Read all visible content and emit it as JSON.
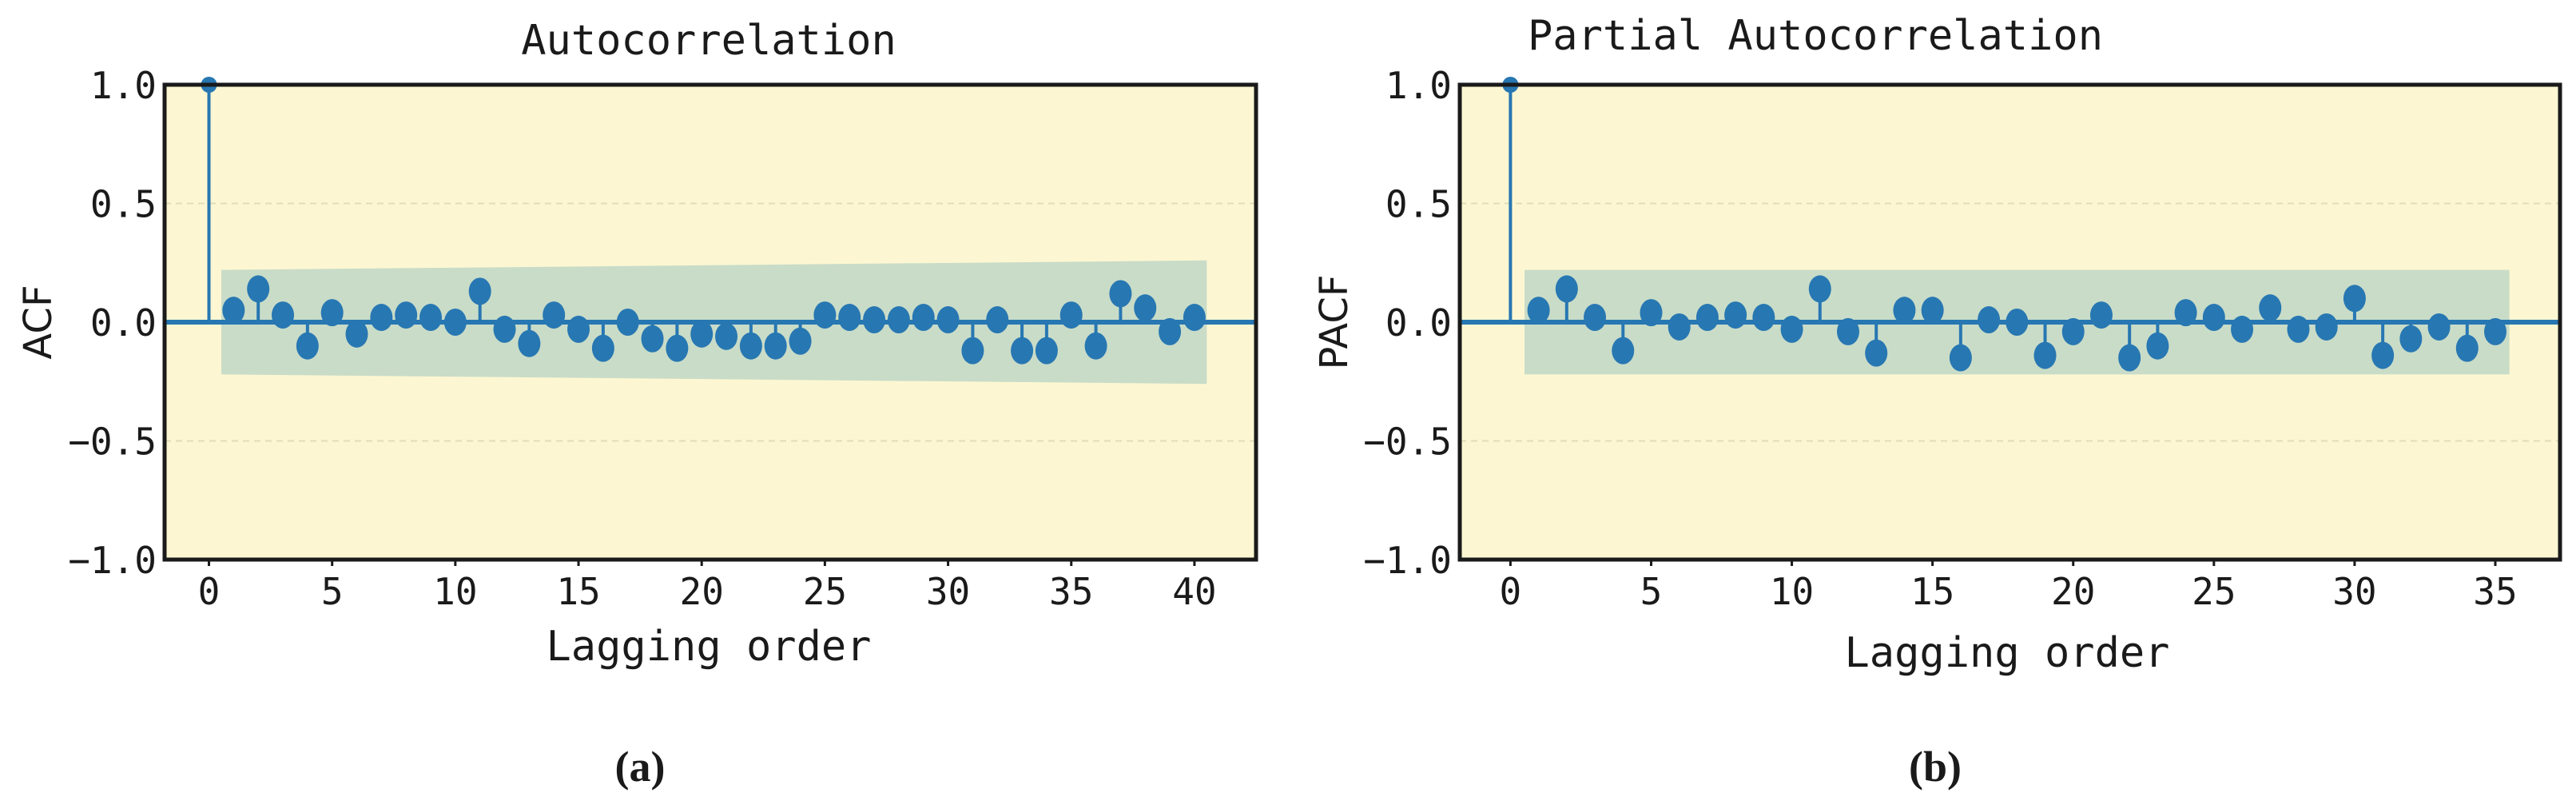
{
  "colors": {
    "plot_background": "#fcf7d2",
    "confidence_band": "#c9dcc8",
    "stem": "#2777b2",
    "marker": "#2777b2",
    "frame": "#1a1a1a",
    "grid": "#e0ddb8"
  },
  "chart_data": [
    {
      "type": "stem",
      "title": "Autocorrelation",
      "xlabel": "Lagging order",
      "ylabel": "ACF",
      "caption": "(a)",
      "xlim": [
        -1.8,
        42.5
      ],
      "ylim": [
        -1.0,
        1.0
      ],
      "xticks": [
        0,
        5,
        10,
        15,
        20,
        25,
        30,
        35,
        40
      ],
      "yticks": [
        1.0,
        0.5,
        0.0,
        -0.5,
        -1.0
      ],
      "ytick_labels": [
        "1.0",
        "0.5",
        "0.0",
        "−0.5",
        "−1.0"
      ],
      "grid": "horizontal dashed",
      "confidence_band": {
        "x": [
          0.5,
          40.5
        ],
        "upper": [
          0.22,
          0.26
        ],
        "lower": [
          -0.22,
          -0.26
        ]
      },
      "x": [
        0,
        1,
        2,
        3,
        4,
        5,
        6,
        7,
        8,
        9,
        10,
        11,
        12,
        13,
        14,
        15,
        16,
        17,
        18,
        19,
        20,
        21,
        22,
        23,
        24,
        25,
        26,
        27,
        28,
        29,
        30,
        31,
        32,
        33,
        34,
        35,
        36,
        37,
        38,
        39,
        40
      ],
      "values": [
        1.0,
        0.05,
        0.14,
        0.03,
        -0.1,
        0.04,
        -0.05,
        0.02,
        0.03,
        0.02,
        0.0,
        0.13,
        -0.03,
        -0.09,
        0.03,
        -0.03,
        -0.11,
        0.0,
        -0.07,
        -0.11,
        -0.05,
        -0.06,
        -0.1,
        -0.1,
        -0.08,
        0.03,
        0.02,
        0.01,
        0.01,
        0.02,
        0.01,
        -0.12,
        0.01,
        -0.12,
        -0.12,
        0.03,
        -0.1,
        0.12,
        0.06,
        -0.04,
        0.02
      ]
    },
    {
      "type": "stem",
      "title": "Partial Autocorrelation",
      "xlabel": "Lagging order",
      "ylabel": "PACF",
      "caption": "(b)",
      "xlim": [
        -1.8,
        37.3
      ],
      "ylim": [
        -1.0,
        1.0
      ],
      "xticks": [
        0,
        5,
        10,
        15,
        20,
        25,
        30,
        35
      ],
      "yticks": [
        1.0,
        0.5,
        0.0,
        -0.5,
        -1.0
      ],
      "ytick_labels": [
        "1.0",
        "0.5",
        "0.0",
        "−0.5",
        "−1.0"
      ],
      "grid": "horizontal dashed",
      "confidence_band": {
        "x": [
          0.5,
          35.5
        ],
        "upper": [
          0.22,
          0.22
        ],
        "lower": [
          -0.22,
          -0.22
        ]
      },
      "x": [
        0,
        1,
        2,
        3,
        4,
        5,
        6,
        7,
        8,
        9,
        10,
        11,
        12,
        13,
        14,
        15,
        16,
        17,
        18,
        19,
        20,
        21,
        22,
        23,
        24,
        25,
        26,
        27,
        28,
        29,
        30,
        31,
        32,
        33,
        34,
        35
      ],
      "values": [
        1.0,
        0.05,
        0.14,
        0.02,
        -0.12,
        0.04,
        -0.02,
        0.02,
        0.03,
        0.02,
        -0.03,
        0.14,
        -0.04,
        -0.13,
        0.05,
        0.05,
        -0.15,
        0.01,
        0.0,
        -0.14,
        -0.04,
        0.03,
        -0.15,
        -0.1,
        0.04,
        0.02,
        -0.03,
        0.06,
        -0.03,
        -0.02,
        0.1,
        -0.14,
        -0.07,
        -0.02,
        -0.11,
        -0.04
      ]
    }
  ]
}
